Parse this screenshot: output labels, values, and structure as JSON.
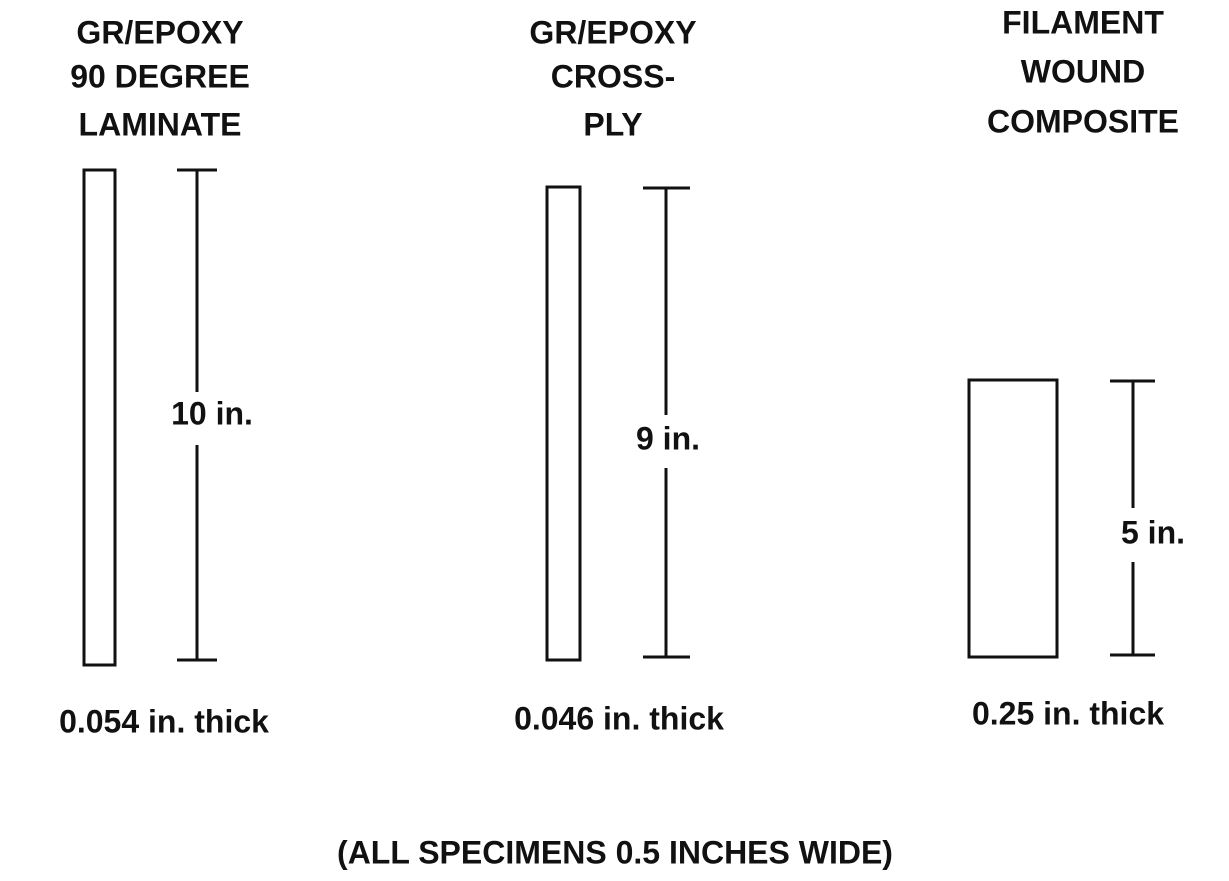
{
  "specimens": [
    {
      "title": [
        "GR/EPOXY",
        "90 DEGREE",
        "LAMINATE"
      ],
      "length": "10 in.",
      "thickness": "0.054 in. thick"
    },
    {
      "title": [
        "GR/EPOXY",
        "CROSS-",
        "PLY"
      ],
      "length": "9 in.",
      "thickness": "0.046 in. thick"
    },
    {
      "title": [
        "FILAMENT",
        "WOUND",
        "COMPOSITE"
      ],
      "length": "5 in.",
      "thickness": "0.25 in. thick"
    }
  ],
  "footer": "(ALL SPECIMENS 0.5 INCHES WIDE)"
}
